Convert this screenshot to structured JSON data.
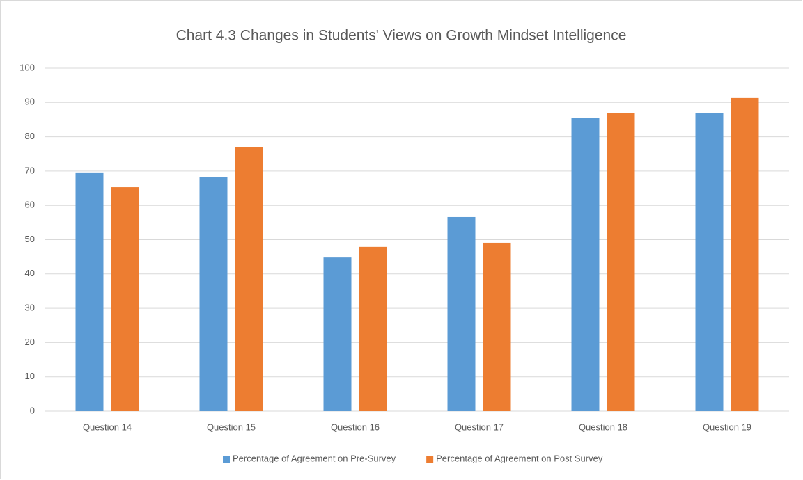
{
  "chart_data": {
    "type": "bar",
    "title": "Chart 4.3 Changes in Students' Views on Growth Mindset Intelligence",
    "categories": [
      "Question 14",
      "Question 15",
      "Question 16",
      "Question 17",
      "Question 18",
      "Question 19"
    ],
    "series": [
      {
        "name": "Percentage of Agreement on Pre-Survey",
        "color": "#5b9bd5",
        "values": [
          69.6,
          68.2,
          44.8,
          56.6,
          85.4,
          87.0
        ]
      },
      {
        "name": "Percentage of Agreement on Post Survey",
        "color": "#ed7d31",
        "values": [
          65.3,
          76.9,
          47.9,
          49.1,
          87.0,
          91.3
        ]
      }
    ],
    "ylim": [
      0,
      100
    ],
    "yticks": [
      0,
      10,
      20,
      30,
      40,
      50,
      60,
      70,
      80,
      90,
      100
    ],
    "grid": true,
    "legend": "bottom"
  }
}
